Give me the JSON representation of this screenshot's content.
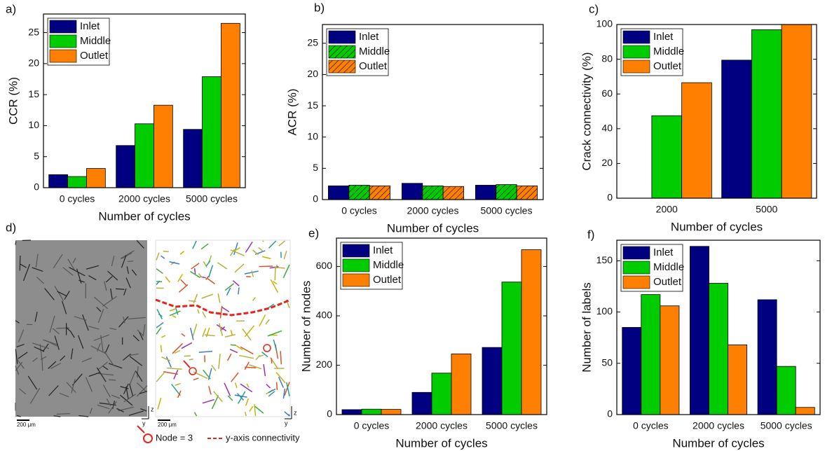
{
  "chart_data": [
    {
      "type": "bar",
      "label": "a)",
      "x_label": "Number of cycles",
      "y_label": "CCR (%)",
      "categories": [
        "0 cycles",
        "2000 cycles",
        "5000 cycles"
      ],
      "series": [
        {
          "name": "Inlet",
          "color": "#000080",
          "values": [
            2.1,
            6.8,
            9.4
          ]
        },
        {
          "name": "Middle",
          "color": "#00cc00",
          "values": [
            1.8,
            10.3,
            17.9
          ]
        },
        {
          "name": "Outlet",
          "color": "#ff8000",
          "values": [
            3.1,
            13.3,
            26.5
          ]
        }
      ],
      "ylim": [
        0,
        28
      ],
      "yticks": [
        0,
        5,
        10,
        15,
        20,
        25
      ],
      "legend": "upper left"
    },
    {
      "type": "bar",
      "label": "b)",
      "x_label": "Number of cycles",
      "y_label": "ACR (%)",
      "categories": [
        "0 cycles",
        "2000 cycles",
        "5000 cycles"
      ],
      "series": [
        {
          "name": "Inlet",
          "color": "#000080",
          "values": [
            2.2,
            2.6,
            2.3
          ]
        },
        {
          "name": "Middle",
          "color": "#00cc00",
          "values": [
            2.3,
            2.2,
            2.4
          ],
          "hatch": true
        },
        {
          "name": "Outlet",
          "color": "#ff8000",
          "values": [
            2.2,
            2.1,
            2.2
          ],
          "hatch": true
        }
      ],
      "ylim": [
        0,
        28
      ],
      "yticks": [
        0,
        5,
        10,
        15,
        20,
        25
      ],
      "legend": "upper left"
    },
    {
      "type": "bar",
      "label": "c)",
      "x_label": "Number of cycles",
      "y_label": "Crack connectivity (%)",
      "categories": [
        "2000",
        "5000"
      ],
      "series": [
        {
          "name": "Inlet",
          "color": "#000080",
          "values": [
            0,
            79.5
          ]
        },
        {
          "name": "Middle",
          "color": "#00cc00",
          "values": [
            47.5,
            97
          ]
        },
        {
          "name": "Outlet",
          "color": "#ff8000",
          "values": [
            66.5,
            100
          ]
        }
      ],
      "ylim": [
        0,
        100
      ],
      "yticks": [
        0,
        20,
        40,
        60,
        80,
        100
      ],
      "legend": "upper left"
    },
    {
      "type": "bar",
      "label": "e)",
      "x_label": "Number of cycles",
      "y_label": "Number of nodes",
      "categories": [
        "0 cycles",
        "2000 cycles",
        "5000 cycles"
      ],
      "series": [
        {
          "name": "Inlet",
          "color": "#000080",
          "values": [
            20,
            90,
            272
          ]
        },
        {
          "name": "Middle",
          "color": "#00cc00",
          "values": [
            22,
            168,
            537
          ]
        },
        {
          "name": "Outlet",
          "color": "#ff8000",
          "values": [
            21,
            246,
            668
          ]
        }
      ],
      "ylim": [
        0,
        715
      ],
      "yticks": [
        0,
        200,
        400,
        600
      ],
      "legend": "upper left"
    },
    {
      "type": "bar",
      "label": "f)",
      "x_label": "Number of cycles",
      "y_label": "Number of labels",
      "categories": [
        "0 cycles",
        "2000 cycles",
        "5000 cycles"
      ],
      "series": [
        {
          "name": "Inlet",
          "color": "#000080",
          "values": [
            85,
            164,
            112
          ]
        },
        {
          "name": "Middle",
          "color": "#00cc00",
          "values": [
            117,
            128,
            47
          ]
        },
        {
          "name": "Outlet",
          "color": "#ff8000",
          "values": [
            106,
            68,
            7
          ]
        }
      ],
      "ylim": [
        0,
        170
      ],
      "yticks": [
        0,
        50,
        100,
        150
      ],
      "legend": "upper left"
    }
  ],
  "image_panel": {
    "label": "d)",
    "scale_bar_left": "200 μm",
    "scale_bar_right": "200 μm",
    "axis_z_left": "z",
    "axis_y_left": "y",
    "axis_z_right": "z",
    "axis_y_right": "y",
    "legend_node": "Node = 3",
    "legend_connectivity": "y-axis connectivity"
  }
}
